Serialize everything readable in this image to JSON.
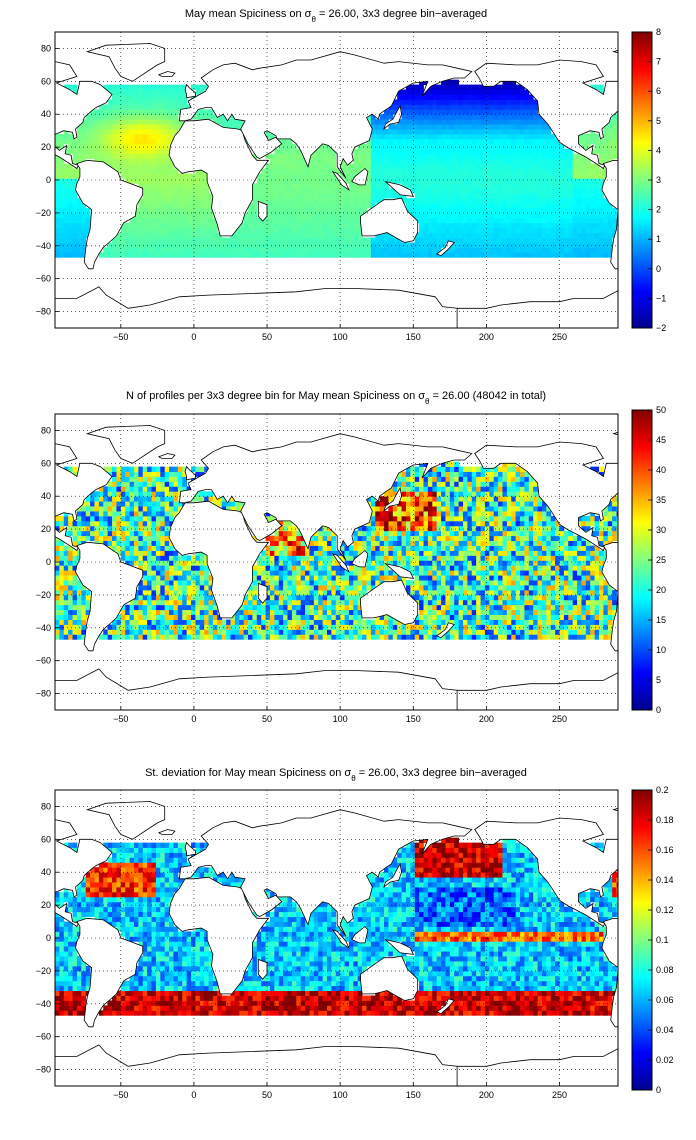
{
  "chart_data": [
    {
      "type": "heatmap",
      "title_pre": "May mean Spiciness on ",
      "title_sigma": "σ",
      "title_sub": "θ",
      "title_post": " = 26.00, 3x3 degree bin−averaged",
      "x_ticks": [
        "−50",
        "0",
        "50",
        "100",
        "150",
        "200",
        "250"
      ],
      "x_tick_values": [
        -50,
        0,
        50,
        100,
        150,
        200,
        250
      ],
      "y_ticks": [
        "80",
        "60",
        "40",
        "20",
        "0",
        "−20",
        "−40",
        "−60",
        "−80"
      ],
      "y_tick_values": [
        80,
        60,
        40,
        20,
        0,
        -20,
        -40,
        -60,
        -80
      ],
      "xlim": [
        -95,
        290
      ],
      "ylim": [
        -90,
        90
      ],
      "colorbar_ticks": [
        "8",
        "7",
        "6",
        "5",
        "4",
        "3",
        "2",
        "1",
        "0",
        "−1",
        "−2"
      ],
      "colorbar_values": [
        8,
        7,
        6,
        5,
        4,
        3,
        2,
        1,
        0,
        -1,
        -2
      ],
      "clim": [
        -2,
        8
      ],
      "colormap": "jet",
      "grid": "dotted"
    },
    {
      "type": "heatmap",
      "title_pre": "N of profiles per 3x3 degree bin for May mean Spiciness on ",
      "title_sigma": "σ",
      "title_sub": "θ",
      "title_post": " = 26.00 (48042 in total)",
      "x_ticks": [
        "−50",
        "0",
        "50",
        "100",
        "150",
        "200",
        "250"
      ],
      "x_tick_values": [
        -50,
        0,
        50,
        100,
        150,
        200,
        250
      ],
      "y_ticks": [
        "80",
        "60",
        "40",
        "20",
        "0",
        "−20",
        "−40",
        "−60",
        "−80"
      ],
      "y_tick_values": [
        80,
        60,
        40,
        20,
        0,
        -20,
        -40,
        -60,
        -80
      ],
      "xlim": [
        -95,
        290
      ],
      "ylim": [
        -90,
        90
      ],
      "colorbar_ticks": [
        "50",
        "45",
        "40",
        "35",
        "30",
        "25",
        "20",
        "15",
        "10",
        "5",
        "0"
      ],
      "colorbar_values": [
        50,
        45,
        40,
        35,
        30,
        25,
        20,
        15,
        10,
        5,
        0
      ],
      "clim": [
        0,
        50
      ],
      "colormap": "jet",
      "grid": "dotted"
    },
    {
      "type": "heatmap",
      "title_pre": "St. deviation for May mean Spiciness on ",
      "title_sigma": "σ",
      "title_sub": "θ",
      "title_post": " = 26.00, 3x3 degree bin−averaged",
      "x_ticks": [
        "−50",
        "0",
        "50",
        "100",
        "150",
        "200",
        "250"
      ],
      "x_tick_values": [
        -50,
        0,
        50,
        100,
        150,
        200,
        250
      ],
      "y_ticks": [
        "80",
        "60",
        "40",
        "20",
        "0",
        "−20",
        "−40",
        "−60",
        "−80"
      ],
      "y_tick_values": [
        80,
        60,
        40,
        20,
        0,
        -20,
        -40,
        -60,
        -80
      ],
      "xlim": [
        -95,
        290
      ],
      "ylim": [
        -90,
        90
      ],
      "colorbar_ticks": [
        "0.2",
        "0.18",
        "0.16",
        "0.14",
        "0.12",
        "0.1",
        "0.08",
        "0.06",
        "0.04",
        "0.02",
        "0"
      ],
      "colorbar_values": [
        0.2,
        0.18,
        0.16,
        0.14,
        0.12,
        0.1,
        0.08,
        0.06,
        0.04,
        0.02,
        0
      ],
      "clim": [
        0,
        0.2
      ],
      "colormap": "jet",
      "grid": "dotted"
    }
  ]
}
